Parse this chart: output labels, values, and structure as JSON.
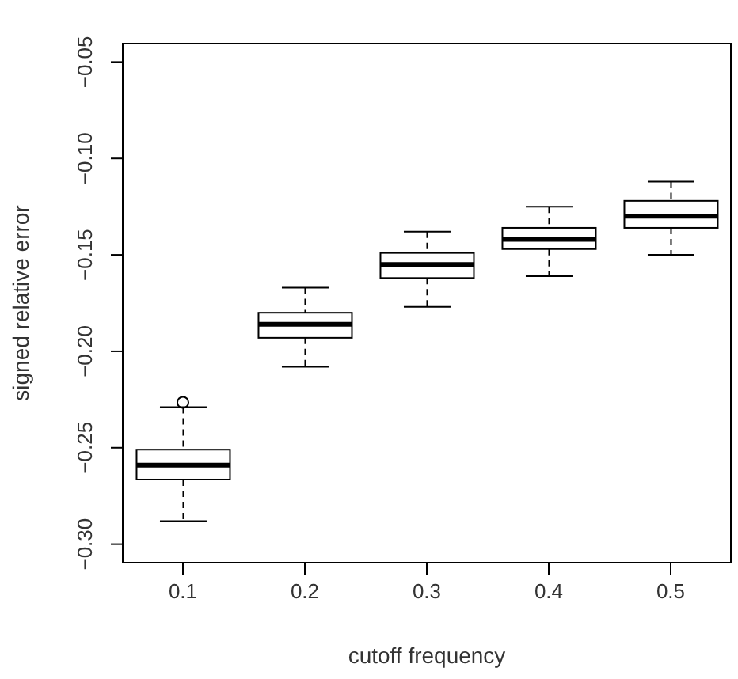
{
  "chart_data": {
    "type": "box",
    "xlabel": "cutoff frequency",
    "ylabel": "signed relative error",
    "categories": [
      "0.1",
      "0.2",
      "0.3",
      "0.4",
      "0.5"
    ],
    "color": "#000000",
    "boxes": [
      {
        "low": -0.288,
        "q1": -0.2665,
        "median": -0.259,
        "q3": -0.251,
        "high": -0.229,
        "outliers": [
          -0.2265
        ]
      },
      {
        "low": -0.208,
        "q1": -0.193,
        "median": -0.186,
        "q3": -0.18,
        "high": -0.167
      },
      {
        "low": -0.177,
        "q1": -0.162,
        "median": -0.155,
        "q3": -0.149,
        "high": -0.138
      },
      {
        "low": -0.161,
        "q1": -0.147,
        "median": -0.142,
        "q3": -0.136,
        "high": -0.125
      },
      {
        "low": -0.15,
        "q1": -0.136,
        "median": -0.13,
        "q3": -0.122,
        "high": -0.112
      }
    ],
    "ylim": [
      -0.31,
      -0.04
    ],
    "yticks": [
      {
        "value": -0.3,
        "label": "−0.30"
      },
      {
        "value": -0.25,
        "label": "−0.25"
      },
      {
        "value": -0.2,
        "label": "−0.20"
      },
      {
        "value": -0.15,
        "label": "−0.15"
      },
      {
        "value": -0.1,
        "label": "−0.10"
      },
      {
        "value": -0.05,
        "label": "−0.05"
      }
    ],
    "legend": false,
    "grid": false
  }
}
